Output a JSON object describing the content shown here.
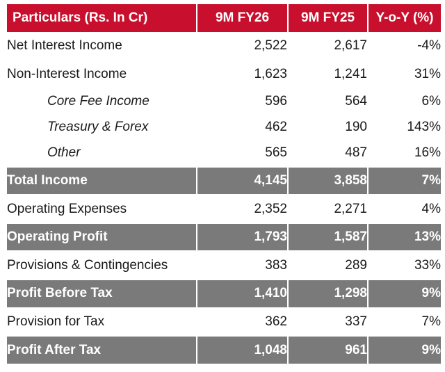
{
  "header": {
    "particulars": "Particulars (Rs. In Cr)",
    "col1": "9M FY26",
    "col2": "9M FY25",
    "col3": "Y-o-Y (%)"
  },
  "colors": {
    "header_bg": "#c8102e",
    "total_bg": "#7a7a7a"
  },
  "rows": [
    {
      "label": "Net Interest Income",
      "v1": "2,522",
      "v2": "2,617",
      "v3": "-4%"
    },
    {
      "label": "Non-Interest Income",
      "v1": "1,623",
      "v2": "1,241",
      "v3": "31%"
    },
    {
      "label": "Core Fee Income",
      "v1": "596",
      "v2": "564",
      "v3": "6%"
    },
    {
      "label": "Treasury & Forex",
      "v1": "462",
      "v2": "190",
      "v3": "143%"
    },
    {
      "label": "Other",
      "v1": "565",
      "v2": "487",
      "v3": "16%"
    },
    {
      "label": "Total Income",
      "v1": "4,145",
      "v2": "3,858",
      "v3": "7%"
    },
    {
      "label": "Operating Expenses",
      "v1": "2,352",
      "v2": "2,271",
      "v3": "4%"
    },
    {
      "label": "Operating Profit",
      "v1": "1,793",
      "v2": "1,587",
      "v3": "13%"
    },
    {
      "label": "Provisions & Contingencies",
      "v1": "383",
      "v2": "289",
      "v3": "33%"
    },
    {
      "label": "Profit Before Tax",
      "v1": "1,410",
      "v2": "1,298",
      "v3": "9%"
    },
    {
      "label": "Provision for Tax",
      "v1": "362",
      "v2": "337",
      "v3": "7%"
    },
    {
      "label": "Profit After Tax",
      "v1": "1,048",
      "v2": "961",
      "v3": "9%"
    }
  ]
}
